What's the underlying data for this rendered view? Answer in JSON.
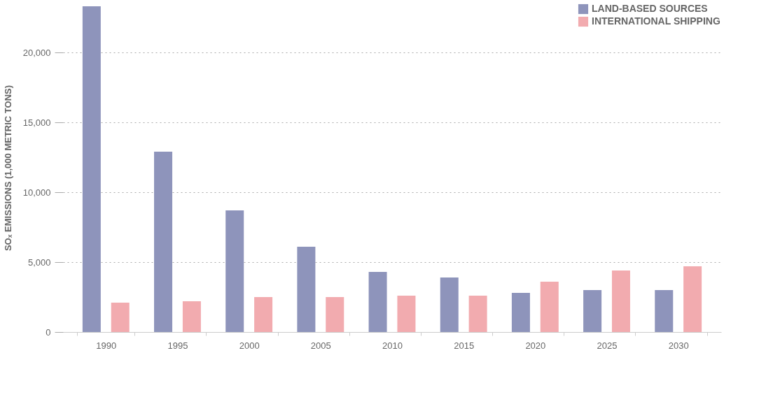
{
  "chart_data": {
    "type": "bar",
    "categories": [
      "1990",
      "1995",
      "2000",
      "2005",
      "2010",
      "2015",
      "2020",
      "2025",
      "2030"
    ],
    "series": [
      {
        "name": "LAND-BASED SOURCES",
        "color": "#8e94bb",
        "values": [
          23300,
          12900,
          8700,
          6100,
          4300,
          3900,
          2800,
          3000,
          3000
        ]
      },
      {
        "name": "INTERNATIONAL SHIPPING",
        "color": "#f2abaf",
        "values": [
          2100,
          2200,
          2500,
          2500,
          2600,
          2600,
          3600,
          4400,
          4700
        ]
      }
    ],
    "ylabel": "SOₓ EMISSIONS (1,000 METRIC TONS)",
    "ylim": [
      0,
      23500
    ],
    "yticks": [
      {
        "value": 0,
        "label": "0"
      },
      {
        "value": 5000,
        "label": "5,000"
      },
      {
        "value": 10000,
        "label": "10,000"
      },
      {
        "value": 15000,
        "label": "15,000"
      },
      {
        "value": 20000,
        "label": "20,000"
      }
    ],
    "grid": "y",
    "legend": "top right"
  }
}
